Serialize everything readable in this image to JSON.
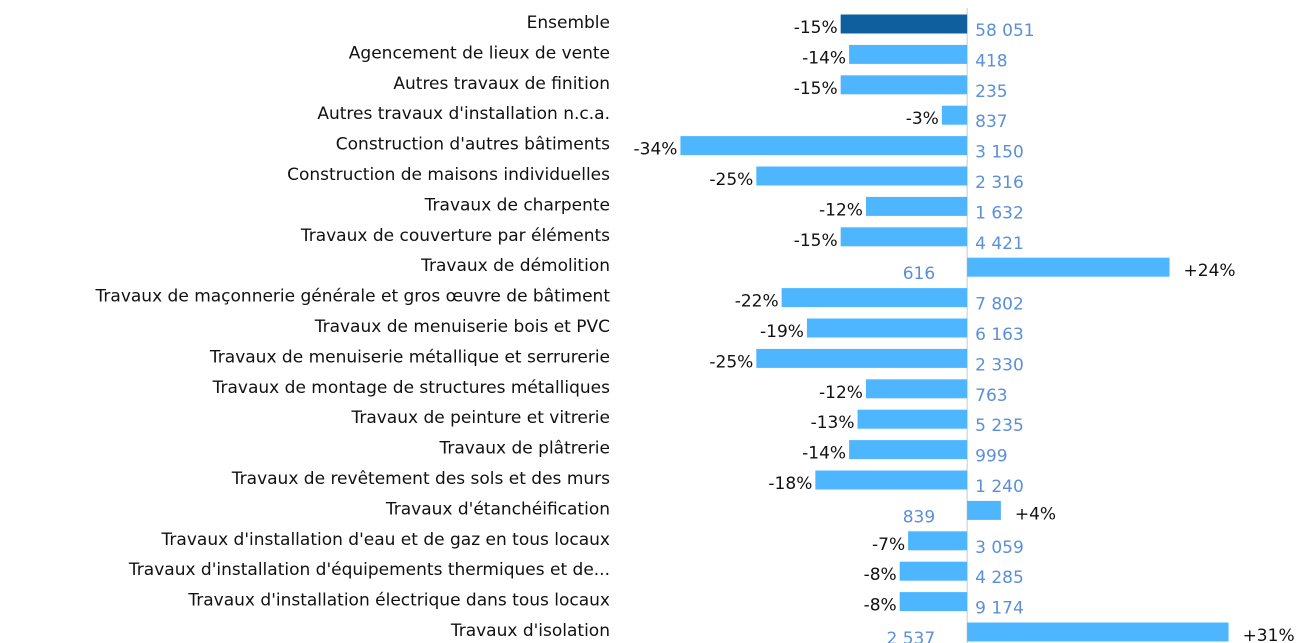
{
  "chart_data": {
    "type": "bar",
    "orientation": "horizontal",
    "categories": [
      "Ensemble",
      "Agencement de lieux de vente",
      "Autres travaux de finition",
      "Autres travaux d'installation n.c.a.",
      "Construction d'autres bâtiments",
      "Construction de maisons individuelles",
      "Travaux de charpente",
      "Travaux de couverture par éléments",
      "Travaux de démolition",
      "Travaux de maçonnerie générale et gros œuvre de bâtiment",
      "Travaux de menuiserie bois et PVC",
      "Travaux de menuiserie métallique et serrurerie",
      "Travaux de montage de structures métalliques",
      "Travaux de peinture et vitrerie",
      "Travaux de plâtrerie",
      "Travaux de revêtement des sols et des murs",
      "Travaux d'étanchéification",
      "Travaux d'installation d'eau et de gaz en tous locaux",
      "Travaux d'installation d'équipements thermiques et de...",
      "Travaux d'installation électrique dans tous locaux",
      "Travaux d'isolation"
    ],
    "values": [
      -15,
      -14,
      -15,
      -3,
      -34,
      -25,
      -12,
      -15,
      24,
      -22,
      -19,
      -25,
      -12,
      -13,
      -14,
      -18,
      4,
      -7,
      -8,
      -8,
      31
    ],
    "value_labels": [
      "-15%",
      "-14%",
      "-15%",
      "-3%",
      "-34%",
      "-25%",
      "-12%",
      "-15%",
      "+24%",
      "-22%",
      "-19%",
      "-25%",
      "-12%",
      "-13%",
      "-14%",
      "-18%",
      "+4%",
      "-7%",
      "-8%",
      "-8%",
      "+31%"
    ],
    "counts": [
      "58 051",
      "418",
      "235",
      "837",
      "3 150",
      "2 316",
      "1 632",
      "4 421",
      "616",
      "7 802",
      "6 163",
      "2 330",
      "763",
      "5 235",
      "999",
      "1 240",
      "839",
      "3 059",
      "4 285",
      "9 174",
      "2 537"
    ],
    "colors": [
      "#0f5f9e",
      "#4db6ff",
      "#4db6ff",
      "#4db6ff",
      "#4db6ff",
      "#4db6ff",
      "#4db6ff",
      "#4db6ff",
      "#4db6ff",
      "#4db6ff",
      "#4db6ff",
      "#4db6ff",
      "#4db6ff",
      "#4db6ff",
      "#4db6ff",
      "#4db6ff",
      "#4db6ff",
      "#4db6ff",
      "#4db6ff",
      "#4db6ff",
      "#4db6ff"
    ],
    "count_color": "#5b8fd9",
    "xlim": [
      -35,
      32
    ]
  }
}
